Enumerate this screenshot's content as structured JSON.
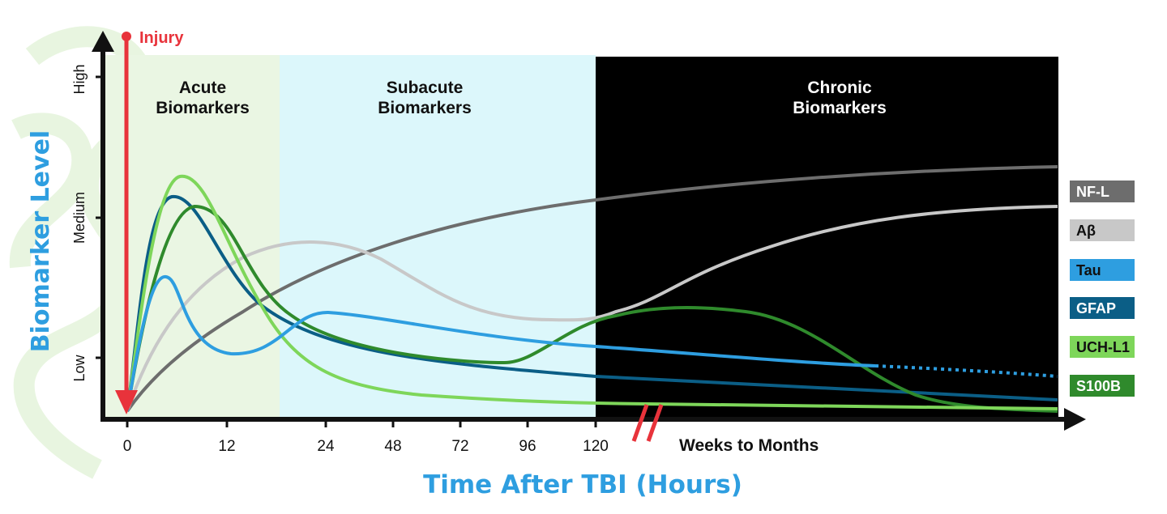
{
  "chart_data": {
    "type": "line",
    "injury_label": "Injury",
    "ylabel": "Biomarker Level",
    "xlabel": "Time After TBI (Hours)",
    "x_ticks": [
      "0",
      "12",
      "24",
      "48",
      "72",
      "96",
      "120"
    ],
    "x_break_label": "Weeks to Months",
    "y_ticks": [
      "Low",
      "Medium",
      "High"
    ],
    "phases": [
      {
        "label_line1": "Acute",
        "label_line2": "Biomarkers",
        "color": "#eaf6e3",
        "text_color": "#111111"
      },
      {
        "label_line1": "Subacute",
        "label_line2": "Biomarkers",
        "color": "#dcf7fb",
        "text_color": "#111111"
      },
      {
        "label_line1": "Chronic",
        "label_line2": "Biomarkers",
        "color": "#000000",
        "text_color": "#ffffff"
      }
    ],
    "series": [
      {
        "name": "NF-L",
        "color": "#6d6d6d"
      },
      {
        "name": "Aβ",
        "color": "#c8c8c8"
      },
      {
        "name": "Tau",
        "color": "#2e9ee0"
      },
      {
        "name": "GFAP",
        "color": "#0b5e86"
      },
      {
        "name": "UCH-L1",
        "color": "#7ed65a"
      },
      {
        "name": "S100B",
        "color": "#2f8a2c"
      }
    ],
    "colors": {
      "injury": "#e8333b",
      "axis": "#111111",
      "axis_title": "#2e9ee0"
    }
  }
}
